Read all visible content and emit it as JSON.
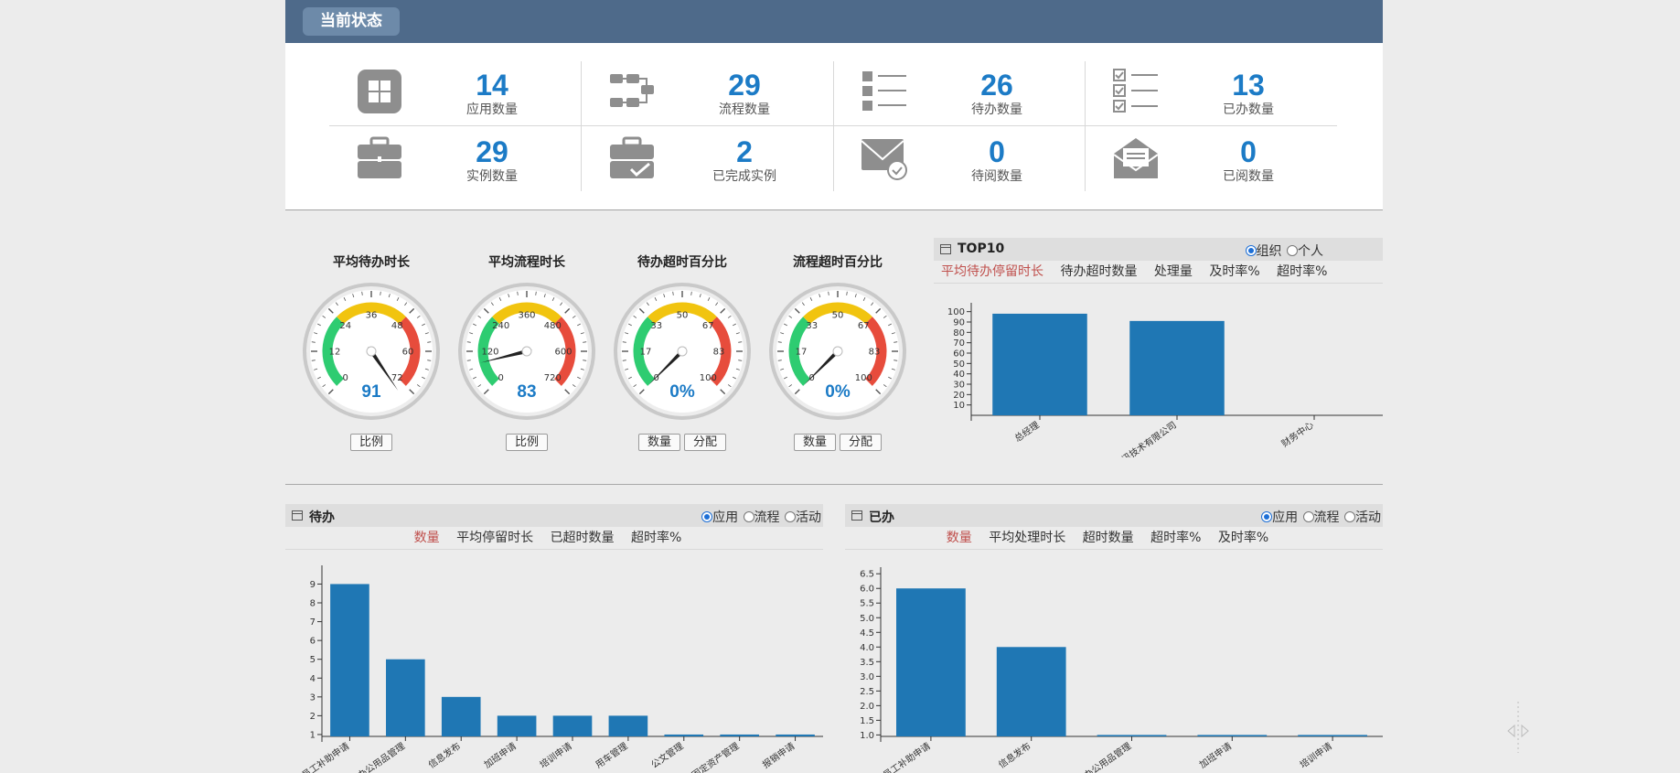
{
  "header": {
    "title": "当前状态"
  },
  "stats": [
    {
      "icon": "apps-grid-icon",
      "value": "14",
      "label": "应用数量"
    },
    {
      "icon": "flow-icon",
      "value": "29",
      "label": "流程数量"
    },
    {
      "icon": "todo-list-icon",
      "value": "26",
      "label": "待办数量"
    },
    {
      "icon": "done-list-icon",
      "value": "13",
      "label": "已办数量"
    },
    {
      "icon": "briefcase-icon",
      "value": "29",
      "label": "实例数量"
    },
    {
      "icon": "briefcase-check-icon",
      "value": "2",
      "label": "已完成实例"
    },
    {
      "icon": "mail-check-icon",
      "value": "0",
      "label": "待阅数量"
    },
    {
      "icon": "mail-open-icon",
      "value": "0",
      "label": "已阅数量"
    }
  ],
  "gauges": [
    {
      "title": "平均待办时长",
      "ticks": [
        "0",
        "12",
        "24",
        "36",
        "48",
        "60",
        "72"
      ],
      "max": 72,
      "value": 91,
      "display": "91",
      "buttons": [
        "比例"
      ]
    },
    {
      "title": "平均流程时长",
      "ticks": [
        "0",
        "120",
        "240",
        "360",
        "480",
        "600",
        "720"
      ],
      "max": 720,
      "value": 83,
      "display": "83",
      "buttons": [
        "比例"
      ]
    },
    {
      "title": "待办超时百分比",
      "ticks": [
        "0",
        "17",
        "33",
        "50",
        "67",
        "83",
        "100"
      ],
      "max": 100,
      "value": 0,
      "display": "0%",
      "buttons": [
        "数量",
        "分配"
      ]
    },
    {
      "title": "流程超时百分比",
      "ticks": [
        "0",
        "17",
        "33",
        "50",
        "67",
        "83",
        "100"
      ],
      "max": 100,
      "value": 0,
      "display": "0%",
      "buttons": [
        "数量",
        "分配"
      ]
    }
  ],
  "top10": {
    "title": "TOP10",
    "radios": [
      {
        "label": "组织",
        "checked": true
      },
      {
        "label": "个人",
        "checked": false
      }
    ],
    "tabs": [
      "平均待办停留时长",
      "待办超时数量",
      "处理量",
      "及时率%",
      "超时率%"
    ],
    "active_tab": 0
  },
  "todo_panel": {
    "title": "待办",
    "radios": [
      {
        "label": "应用",
        "checked": true
      },
      {
        "label": "流程",
        "checked": false
      },
      {
        "label": "活动",
        "checked": false
      }
    ],
    "tabs": [
      "数量",
      "平均停留时长",
      "已超时数量",
      "超时率%"
    ],
    "active_tab": 0
  },
  "done_panel": {
    "title": "已办",
    "radios": [
      {
        "label": "应用",
        "checked": true
      },
      {
        "label": "流程",
        "checked": false
      },
      {
        "label": "活动",
        "checked": false
      }
    ],
    "tabs": [
      "数量",
      "平均处理时长",
      "超时数量",
      "超时率%",
      "及时率%"
    ],
    "active_tab": 0
  },
  "colors": {
    "bar": "#1f77b4",
    "active_tab": "#c0504d",
    "number": "#1c7bc6"
  },
  "chart_data": [
    {
      "id": "top10",
      "type": "bar",
      "categories": [
        "总经理",
        "…讯技术有限公司",
        "财务中心"
      ],
      "values": [
        98,
        91,
        0
      ],
      "ylim": [
        0,
        105
      ],
      "yticks": [
        10,
        20,
        30,
        40,
        50,
        60,
        70,
        80,
        90,
        100
      ],
      "title": "",
      "xlabel": "",
      "ylabel": ""
    },
    {
      "id": "todo",
      "type": "bar",
      "categories": [
        "…员工补助申请",
        "…办公用品管理",
        "信息发布",
        "加班申请",
        "培训申请",
        "用车管理",
        "公文管理",
        "…固定资产管理",
        "报销申请"
      ],
      "values": [
        9,
        5,
        3,
        2,
        2,
        2,
        1,
        1,
        1
      ],
      "ylim": [
        0.9,
        9.8
      ],
      "yticks": [
        1,
        2,
        3,
        4,
        5,
        6,
        7,
        8,
        9
      ],
      "title": "",
      "xlabel": "",
      "ylabel": ""
    },
    {
      "id": "done",
      "type": "bar",
      "categories": [
        "…员工补助申请",
        "信息发布",
        "…办公用品管理",
        "加班申请",
        "培训申请"
      ],
      "values": [
        6,
        4,
        1,
        1,
        1
      ],
      "ylim": [
        0.95,
        6.6
      ],
      "yticks": [
        1.0,
        1.5,
        2.0,
        2.5,
        3.0,
        3.5,
        4.0,
        4.5,
        5.0,
        5.5,
        6.0,
        6.5
      ],
      "ytick_labels": [
        "1.0",
        "1.5",
        "2.0",
        "2.5",
        "3.0",
        "3.5",
        "4.0",
        "4.5",
        "5.0",
        "5.5",
        "6.0",
        "6.5"
      ],
      "title": "",
      "xlabel": "",
      "ylabel": ""
    }
  ]
}
